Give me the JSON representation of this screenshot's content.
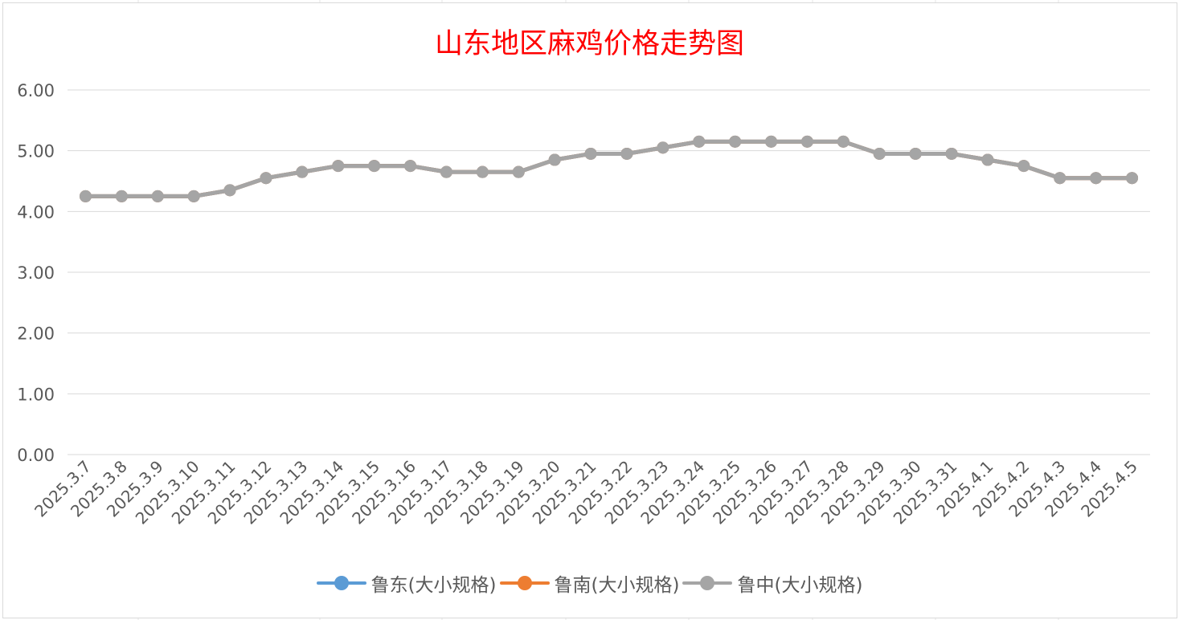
{
  "chart_data": {
    "type": "line",
    "title": "山东地区麻鸡价格走势图",
    "title_color": "#ff0000",
    "categories": [
      "2025.3.7",
      "2025.3.8",
      "2025.3.9",
      "2025.3.10",
      "2025.3.11",
      "2025.3.12",
      "2025.3.13",
      "2025.3.14",
      "2025.3.15",
      "2025.3.16",
      "2025.3.17",
      "2025.3.18",
      "2025.3.19",
      "2025.3.20",
      "2025.3.21",
      "2025.3.22",
      "2025.3.23",
      "2025.3.24",
      "2025.3.25",
      "2025.3.26",
      "2025.3.27",
      "2025.3.28",
      "2025.3.29",
      "2025.3.30",
      "2025.3.31",
      "2025.4.1",
      "2025.4.2",
      "2025.4.3",
      "2025.4.4",
      "2025.4.5"
    ],
    "y_ticks": [
      "0.00",
      "1.00",
      "2.00",
      "3.00",
      "4.00",
      "5.00",
      "6.00"
    ],
    "ylim": [
      0,
      6
    ],
    "grid": true,
    "legend_position": "bottom",
    "series": [
      {
        "name": "鲁东(大小规格)",
        "color": "#5b9bd5",
        "values": [
          4.25,
          4.25,
          4.25,
          4.25,
          4.35,
          4.55,
          4.65,
          4.75,
          4.75,
          4.75,
          4.65,
          4.65,
          4.65,
          4.85,
          4.95,
          4.95,
          5.05,
          5.15,
          5.15,
          5.15,
          5.15,
          5.15,
          4.95,
          4.95,
          4.95,
          4.85,
          4.75,
          4.55,
          4.55,
          4.55
        ]
      },
      {
        "name": "鲁南(大小规格)",
        "color": "#ed7d31",
        "values": [
          4.25,
          4.25,
          4.25,
          4.25,
          4.35,
          4.55,
          4.65,
          4.75,
          4.75,
          4.75,
          4.65,
          4.65,
          4.65,
          4.85,
          4.95,
          4.95,
          5.05,
          5.15,
          5.15,
          5.15,
          5.15,
          5.15,
          4.95,
          4.95,
          4.95,
          4.85,
          4.75,
          4.55,
          4.55,
          4.55
        ]
      },
      {
        "name": "鲁中(大小规格)",
        "color": "#a5a5a5",
        "values": [
          4.25,
          4.25,
          4.25,
          4.25,
          4.35,
          4.55,
          4.65,
          4.75,
          4.75,
          4.75,
          4.65,
          4.65,
          4.65,
          4.85,
          4.95,
          4.95,
          5.05,
          5.15,
          5.15,
          5.15,
          5.15,
          5.15,
          4.95,
          4.95,
          4.95,
          4.85,
          4.75,
          4.55,
          4.55,
          4.55
        ]
      }
    ]
  }
}
